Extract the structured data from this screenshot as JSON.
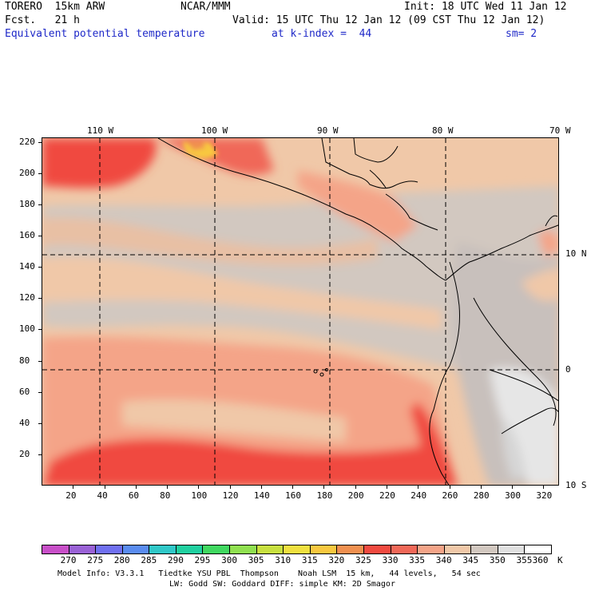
{
  "header": {
    "model": "TORERO  15km ARW",
    "org": "NCAR/MMM",
    "init": "Init: 18 UTC Wed 11 Jan 12",
    "fcst": "Fcst.   21 h",
    "valid": "Valid: 15 UTC Thu 12 Jan 12 (09 CST Thu 12 Jan 12)",
    "field": "Equivalent potential temperature",
    "level": "at k-index =  44",
    "smoothing": "sm= 2"
  },
  "map": {
    "lon_labels": [
      "110 W",
      "100 W",
      "90 W",
      "80 W",
      "70 W"
    ],
    "lat_labels": [
      "10 N",
      "0",
      "10 S"
    ],
    "x_ticks": [
      "20",
      "40",
      "60",
      "80",
      "100",
      "120",
      "140",
      "160",
      "180",
      "200",
      "220",
      "240",
      "260",
      "280",
      "300",
      "320"
    ],
    "y_ticks": [
      "220",
      "200",
      "180",
      "160",
      "140",
      "120",
      "100",
      "80",
      "60",
      "40",
      "20"
    ]
  },
  "colorbar": {
    "unit": "K",
    "labels": [
      "270",
      "275",
      "280",
      "285",
      "290",
      "295",
      "300",
      "305",
      "310",
      "315",
      "320",
      "325",
      "330",
      "335",
      "340",
      "345",
      "350",
      "355",
      "360"
    ],
    "colors": [
      "#c84fc8",
      "#9a62d6",
      "#7070f0",
      "#5a8cf0",
      "#30c8c8",
      "#20d0a0",
      "#40d860",
      "#90e050",
      "#c8e040",
      "#f0e040",
      "#f8c840",
      "#f09050",
      "#f04a40",
      "#f06858",
      "#f4a488",
      "#f0c8a8",
      "#d2c8c0",
      "#e0e0e0",
      "#ffffff"
    ]
  },
  "footer": {
    "line1": "Model Info: V3.3.1   Tiedtke YSU PBL  Thompson    Noah LSM  15 km,   44 levels,   54 sec",
    "line2": "LW: Godd SW: Goddard DIFF: simple KM: 2D Smagor"
  }
}
